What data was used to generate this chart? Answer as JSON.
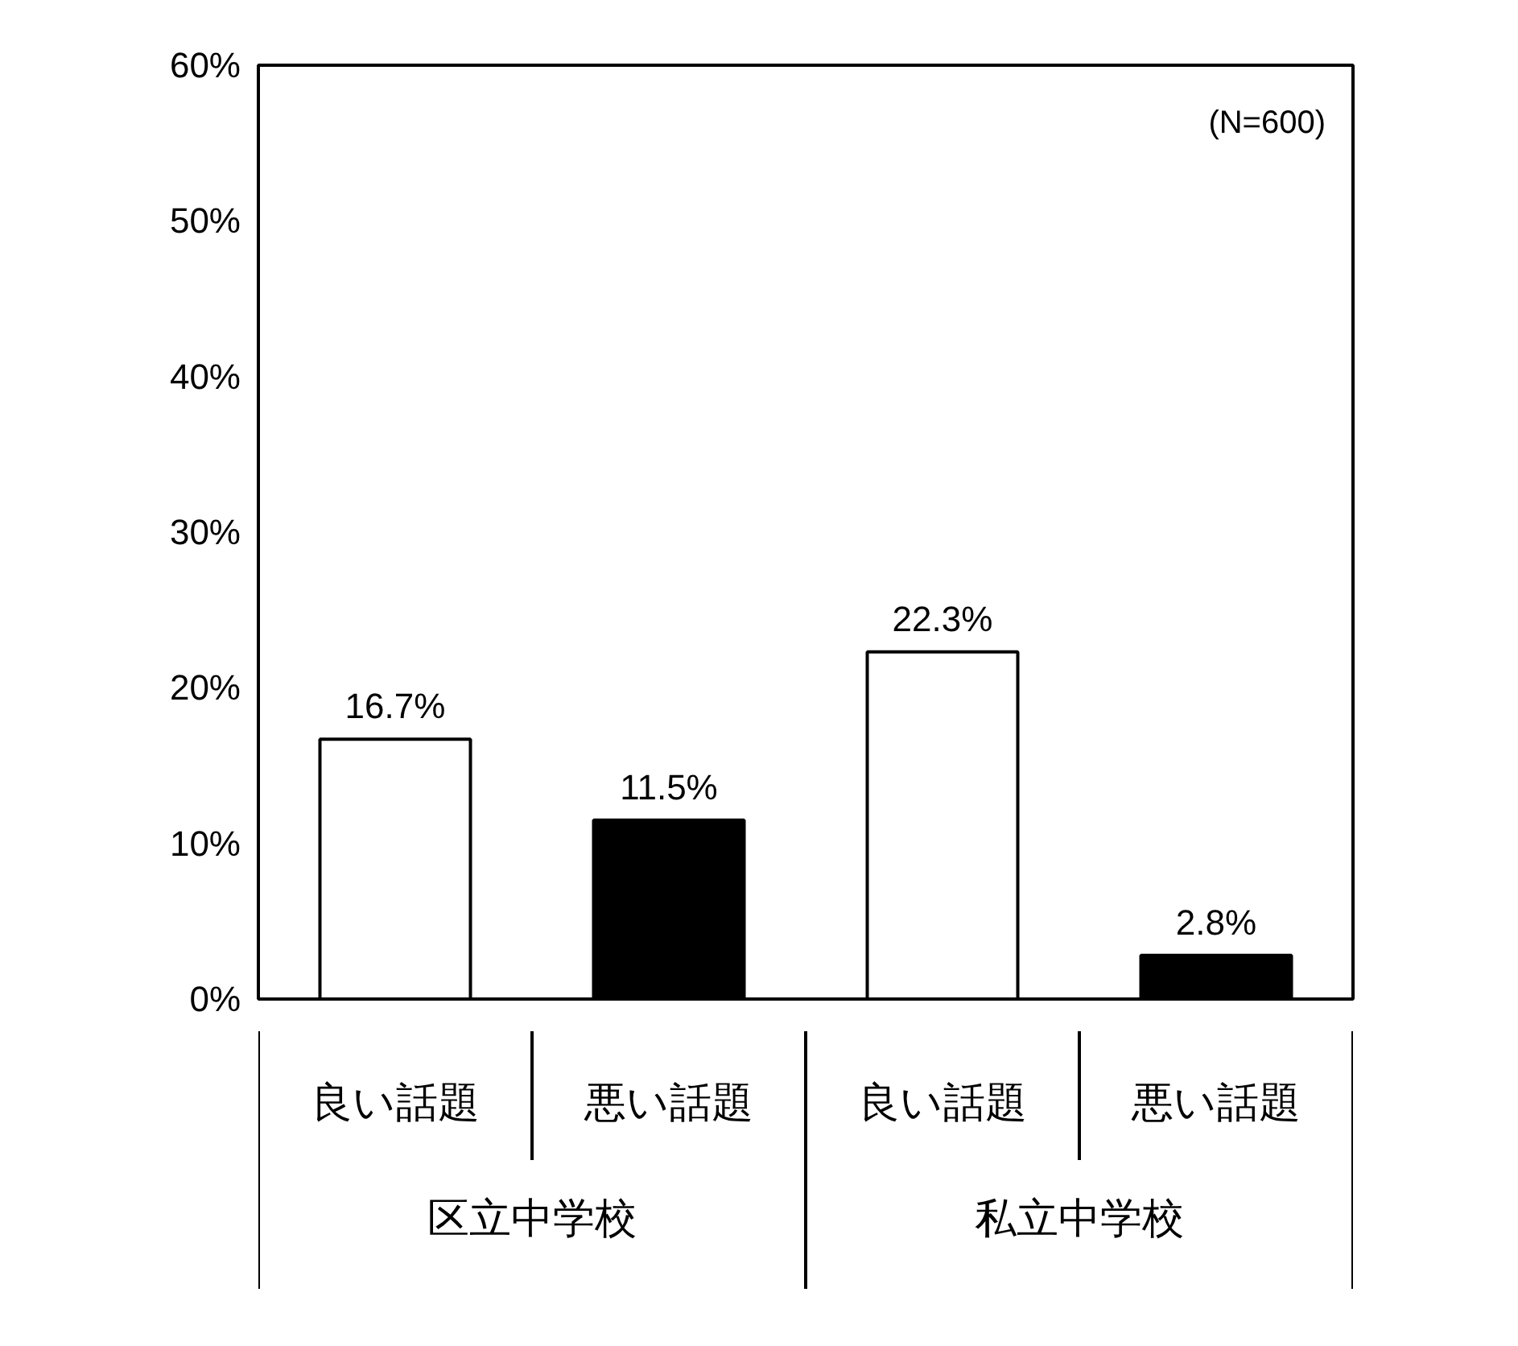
{
  "chart_data": {
    "type": "bar",
    "categories": [
      "良い話題",
      "悪い話題",
      "良い話題",
      "悪い話題"
    ],
    "values": [
      16.7,
      11.5,
      22.3,
      2.8
    ],
    "colors": [
      "#ffffff",
      "#000000",
      "#ffffff",
      "#000000"
    ],
    "value_labels": [
      "16.7%",
      "11.5%",
      "22.3%",
      "2.8%"
    ],
    "ylim": [
      0,
      60
    ],
    "yticks": [
      {
        "value": 0,
        "label": "0%"
      },
      {
        "value": 10,
        "label": "10%"
      },
      {
        "value": 20,
        "label": "20%"
      },
      {
        "value": 30,
        "label": "30%"
      },
      {
        "value": 40,
        "label": "40%"
      },
      {
        "value": 50,
        "label": "50%"
      },
      {
        "value": 60,
        "label": "60%"
      }
    ],
    "grid": false,
    "annotations": [
      "(N=600)",
      "区立中学校",
      "私立中学校"
    ]
  }
}
